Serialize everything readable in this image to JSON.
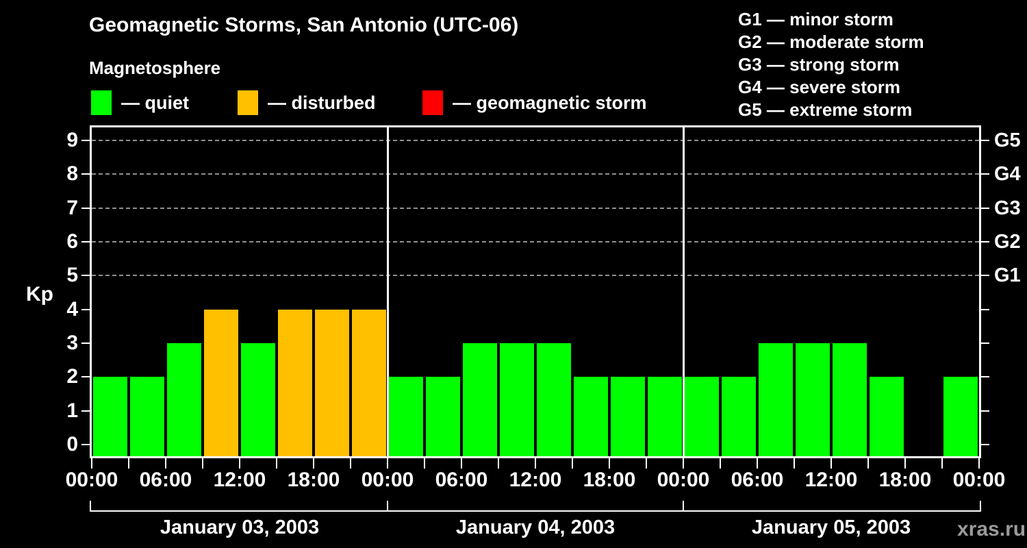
{
  "header": {
    "title": "Geomagnetic Storms, San Antonio (UTC-06)",
    "subtitle": "Magnetosphere"
  },
  "legend": {
    "items": [
      {
        "key": "quiet",
        "label": "— quiet",
        "color": "#00ff00"
      },
      {
        "key": "disturbed",
        "label": "— disturbed",
        "color": "#ffc000"
      },
      {
        "key": "storm",
        "label": "— geomagnetic storm",
        "color": "#ff0000"
      }
    ]
  },
  "g_scale_legend": {
    "items": [
      "G1 — minor storm",
      "G2 — moderate storm",
      "G3 — strong storm",
      "G4 — severe storm",
      "G5 — extreme storm"
    ]
  },
  "watermark": "xras.ru",
  "chart_data": {
    "type": "bar",
    "title": "Geomagnetic Storms, San Antonio (UTC-06)",
    "subtitle": "Magnetosphere",
    "ylabel": "Kp",
    "ylim": [
      0,
      9
    ],
    "y_ticks": [
      0,
      1,
      2,
      3,
      4,
      5,
      6,
      7,
      8,
      9
    ],
    "grid_levels": [
      5,
      6,
      7,
      8,
      9
    ],
    "right_axis_labels": [
      {
        "level": 5,
        "label": "G1"
      },
      {
        "level": 6,
        "label": "G2"
      },
      {
        "level": 7,
        "label": "G3"
      },
      {
        "level": 8,
        "label": "G4"
      },
      {
        "level": 9,
        "label": "G5"
      }
    ],
    "x_tick_labels": [
      "00:00",
      "06:00",
      "12:00",
      "18:00",
      "00:00",
      "06:00",
      "12:00",
      "18:00",
      "00:00",
      "06:00",
      "12:00",
      "18:00",
      "00:00"
    ],
    "bins_per_day": 8,
    "bin_hours": 3,
    "days": [
      {
        "date": "January 03, 2003",
        "values": [
          2,
          2,
          3,
          4,
          3,
          4,
          4,
          4
        ]
      },
      {
        "date": "January 04, 2003",
        "values": [
          2,
          2,
          3,
          3,
          3,
          2,
          2,
          2
        ]
      },
      {
        "date": "January 05, 2003",
        "values": [
          2,
          2,
          3,
          3,
          3,
          2,
          null,
          2
        ]
      }
    ],
    "colors": {
      "quiet": "#00ff00",
      "disturbed": "#ffc000",
      "storm": "#ff0000"
    },
    "color_rules": {
      "disturbed_at_kp": 4,
      "storm_at_kp": 5
    },
    "legend_position": "top",
    "grid": "dashed horizontal at storm levels only",
    "background": "#000000"
  }
}
